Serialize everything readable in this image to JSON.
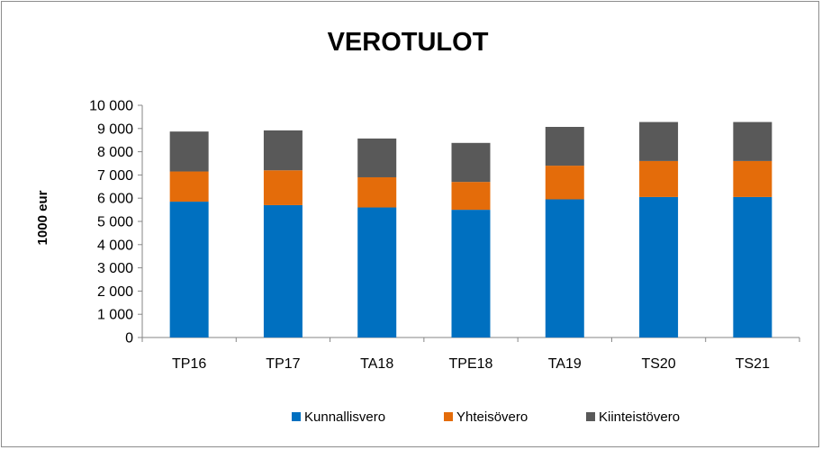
{
  "chart_data": {
    "type": "bar",
    "stacked": true,
    "title": "VEROTULOT",
    "xlabel": "",
    "ylabel": "1000 eur",
    "ylim": [
      0,
      10000
    ],
    "yticks": [
      0,
      1000,
      2000,
      3000,
      4000,
      5000,
      6000,
      7000,
      8000,
      9000,
      10000
    ],
    "ytick_labels": [
      "0",
      "1 000",
      "2 000",
      "3 000",
      "4 000",
      "5 000",
      "6 000",
      "7 000",
      "8 000",
      "9 000",
      "10 000"
    ],
    "grid": false,
    "legend_position": "bottom",
    "categories": [
      "TP16",
      "TP17",
      "TA18",
      "TPE18",
      "TA19",
      "TS20",
      "TS21"
    ],
    "series": [
      {
        "name": "Kunnallisvero",
        "color": "#0070C0",
        "values": [
          5850,
          5700,
          5600,
          5500,
          5950,
          6050,
          6050
        ]
      },
      {
        "name": "Yhteisövero",
        "color": "#E46C0A",
        "values": [
          1300,
          1500,
          1300,
          1200,
          1450,
          1550,
          1550
        ]
      },
      {
        "name": "Kiinteistövero",
        "color": "#595959",
        "values": [
          1720,
          1720,
          1670,
          1680,
          1670,
          1680,
          1680
        ]
      }
    ]
  }
}
